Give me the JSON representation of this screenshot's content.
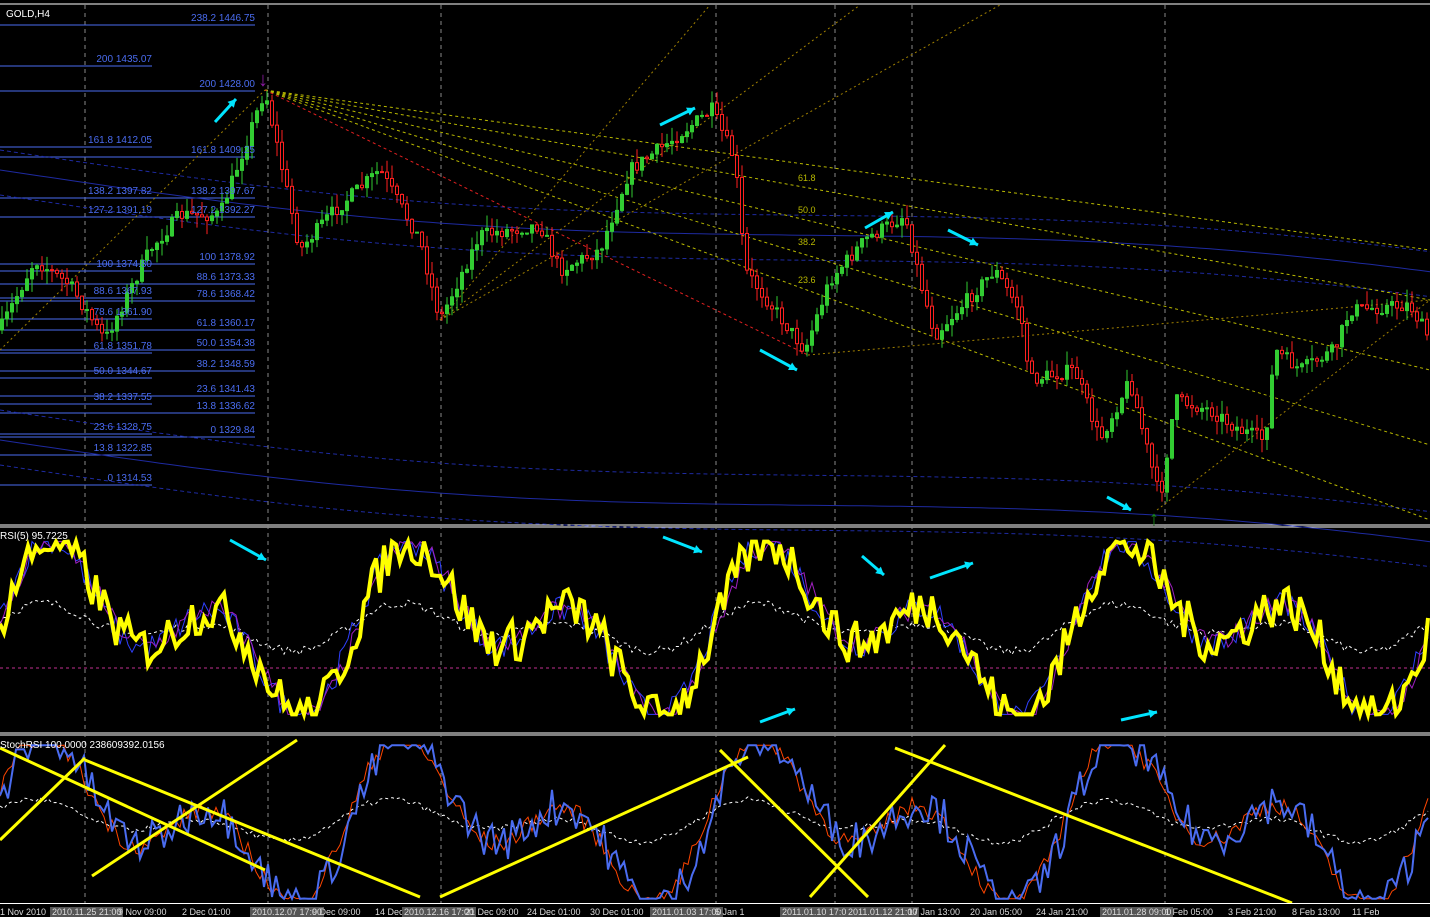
{
  "window": {
    "symbol_title": "GOLD,H4"
  },
  "colors": {
    "background": "#000000",
    "bull_candle": "#32cd32",
    "bear_candle": "#ff2020",
    "fib": "#4a6cf0",
    "rsi_main": "#ffff00",
    "arrows": "#00e5ff",
    "bands": "#1e2aa0"
  },
  "fib_right": [
    "238.2 1446.75",
    "200 1428.00",
    "161.8 1409.25",
    "138.2 1397.67",
    "127.2 1392.27",
    "100 1378.92",
    "88.6 1373.33",
    "78.6 1368.42",
    "61.8 1360.17",
    "50.0 1354.38",
    "38.2 1348.59",
    "23.6 1341.43",
    "13.8 1336.62",
    "0 1329.84"
  ],
  "fib_left": [
    "200 1435.07",
    "161.8 1412.05",
    "138.2 1397.82",
    "127.2 1391.19",
    "100 1374.80",
    "88.6 1367.93",
    "78.6 1361.90",
    "61.8 1351.78",
    "50.0 1344.67",
    "38.2 1337.55",
    "23.6 1328.75",
    "13.8 1322.85",
    "0 1314.53"
  ],
  "fan_levels": [
    "61.8",
    "50.0",
    "38.2",
    "23.6"
  ],
  "indicators": {
    "rsi_label": "RSI(5) 95.7225",
    "stochrsi_label": "StochRSI 100.0000 238609392.0156"
  },
  "time_axis": [
    {
      "t": "1 Nov 2010",
      "hl": false
    },
    {
      "t": "2010.11.25 21:00",
      "hl": true
    },
    {
      "t": "9 Nov 09:00",
      "hl": false
    },
    {
      "t": "2 Dec 01:00",
      "hl": false
    },
    {
      "t": "2010.12.07 17:00",
      "hl": true
    },
    {
      "t": "9 Dec 09:00",
      "hl": false
    },
    {
      "t": "14 Dec",
      "hl": false
    },
    {
      "t": "2010.12.16 17:00",
      "hl": true
    },
    {
      "t": "21 Dec 09:00",
      "hl": false
    },
    {
      "t": "24 Dec 01:00",
      "hl": false
    },
    {
      "t": "30 Dec 01:00",
      "hl": false
    },
    {
      "t": "2011.01.03 17:00",
      "hl": true
    },
    {
      "t": "5 Jan 1",
      "hl": false
    },
    {
      "t": "2011.01.10 17:00",
      "hl": true
    },
    {
      "t": "2011.01.12 21:00",
      "hl": true
    },
    {
      "t": "17 Jan 13:00",
      "hl": false
    },
    {
      "t": "20 Jan 05:00",
      "hl": false
    },
    {
      "t": "24 Jan 21:00",
      "hl": false
    },
    {
      "t": "2011.01.28 09:00",
      "hl": true
    },
    {
      "t": "1 Feb 05:00",
      "hl": false
    },
    {
      "t": "3 Feb 21:00",
      "hl": false
    },
    {
      "t": "8 Feb 13:00",
      "hl": false
    },
    {
      "t": "11 Feb",
      "hl": false
    }
  ],
  "chart_data": {
    "type": "candlestick",
    "symbol": "GOLD",
    "timeframe": "H4",
    "price_range": [
      1302,
      1452
    ],
    "swing_points": [
      {
        "label": "high",
        "price": 1428.0
      },
      {
        "label": "low",
        "price": 1329.84
      },
      {
        "label": "low",
        "price": 1306.8
      }
    ],
    "rsi_last": 95.7225
  }
}
